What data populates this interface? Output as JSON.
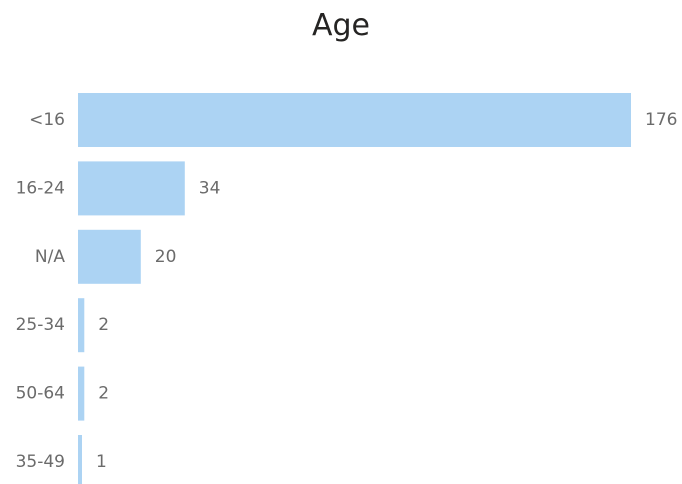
{
  "chart_data": {
    "type": "bar",
    "orientation": "horizontal",
    "title": "Age",
    "categories": [
      "<16",
      "16-24",
      "N/A",
      "25-34",
      "50-64",
      "35-49"
    ],
    "values": [
      176,
      34,
      20,
      2,
      2,
      1
    ],
    "xlim": [
      0,
      176
    ],
    "grid": false,
    "legend": "none",
    "data_labels": true,
    "bar_color": "#acd3f3",
    "label_color": "#6b6b6b",
    "title_color": "#252423"
  }
}
